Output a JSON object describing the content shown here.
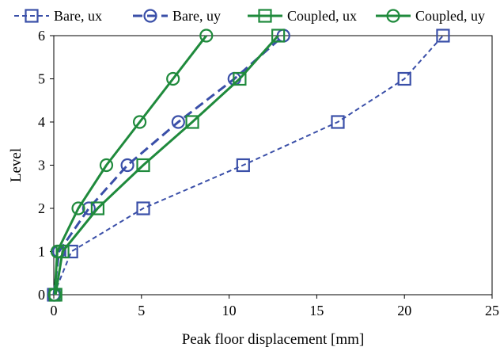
{
  "chart_data": {
    "type": "line",
    "title": "",
    "xlabel": "Peak floor displacement [mm]",
    "ylabel": "Level",
    "xlim": [
      0,
      25
    ],
    "ylim": [
      0,
      6
    ],
    "x_ticks": [
      0,
      5,
      10,
      15,
      20,
      25
    ],
    "y_ticks": [
      0,
      1,
      2,
      3,
      4,
      5,
      6
    ],
    "grid": false,
    "legend_position": "top",
    "series": [
      {
        "name": "Bare, ux",
        "color": "#3a4fa8",
        "line": "dashed-thin",
        "marker": "square",
        "x": [
          0,
          1.0,
          5.1,
          10.8,
          16.2,
          20.0,
          22.2
        ],
        "y": [
          0,
          1,
          2,
          3,
          4,
          5,
          6
        ]
      },
      {
        "name": "Bare, uy",
        "color": "#3a4fa8",
        "line": "dashed-thick",
        "marker": "circle",
        "x": [
          0,
          0.3,
          2.0,
          4.2,
          7.1,
          10.3,
          13.1
        ],
        "y": [
          0,
          1,
          2,
          3,
          4,
          5,
          6
        ]
      },
      {
        "name": "Coupled, ux",
        "color": "#1f8a3c",
        "line": "solid",
        "marker": "square",
        "x": [
          0.1,
          0.5,
          2.5,
          5.1,
          7.9,
          10.6,
          12.8
        ],
        "y": [
          0,
          1,
          2,
          3,
          4,
          5,
          6
        ]
      },
      {
        "name": "Coupled, uy",
        "color": "#1f8a3c",
        "line": "solid",
        "marker": "circle",
        "x": [
          0.05,
          0.2,
          1.4,
          3.0,
          4.9,
          6.8,
          8.7
        ],
        "y": [
          0,
          1,
          2,
          3,
          4,
          5,
          6
        ]
      }
    ]
  }
}
